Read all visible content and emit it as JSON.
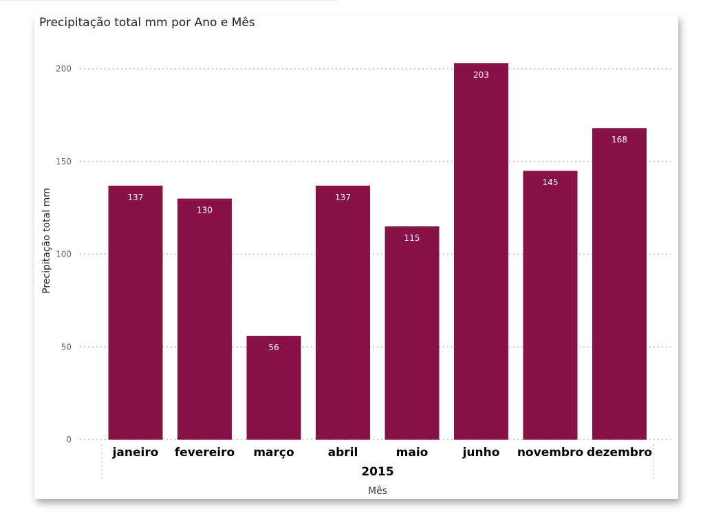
{
  "visual": {
    "title": "Precipitação total mm por Ano e Mês"
  },
  "chart_data": {
    "type": "bar",
    "title": "Precipitação total mm por Ano e Mês",
    "ylabel": "Precipitação total mm",
    "xlabel": "Mês",
    "year_group": "2015",
    "categories": [
      "janeiro",
      "fevereiro",
      "março",
      "abril",
      "maio",
      "junho",
      "novembro",
      "dezembro"
    ],
    "values": [
      137,
      130,
      56,
      137,
      115,
      203,
      145,
      168
    ],
    "data_labels": [
      "137",
      "130",
      "56",
      "137",
      "115",
      "203",
      "145",
      "168"
    ],
    "ylim": [
      0,
      200
    ],
    "yticks": [
      0,
      50,
      100,
      150,
      200
    ],
    "grid": true,
    "bar_color": "#861247"
  }
}
